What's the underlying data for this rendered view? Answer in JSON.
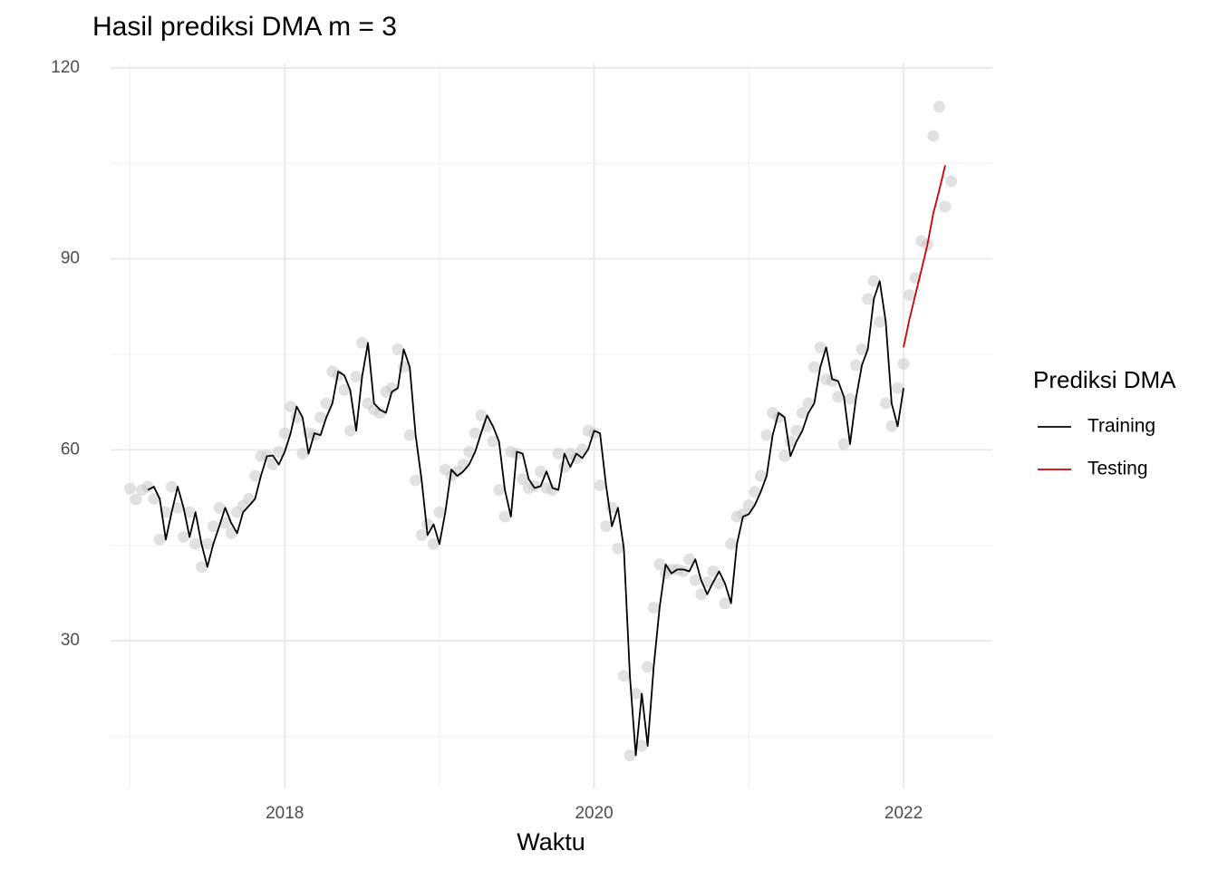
{
  "chart_data": {
    "type": "line",
    "title": "Hasil prediksi DMA m = 3",
    "x_label": "Waktu",
    "legend_title": "Prediksi DMA",
    "legend_position": "right",
    "grid": true,
    "xlim": [
      2016.874,
      2022.574
    ],
    "ylim": [
      6.8,
      120.7
    ],
    "xticks": [
      2018,
      2020,
      2022
    ],
    "yticks": [
      30,
      60,
      90,
      120
    ],
    "xminor": [
      2017,
      2019,
      2021
    ],
    "yminor": [
      15,
      45,
      75,
      105
    ],
    "x": [
      2017.0,
      2017.038,
      2017.077,
      2017.115,
      2017.154,
      2017.192,
      2017.231,
      2017.269,
      2017.308,
      2017.346,
      2017.385,
      2017.423,
      2017.462,
      2017.5,
      2017.538,
      2017.577,
      2017.615,
      2017.654,
      2017.692,
      2017.731,
      2017.769,
      2017.808,
      2017.846,
      2017.885,
      2017.923,
      2017.962,
      2018.0,
      2018.038,
      2018.077,
      2018.115,
      2018.154,
      2018.192,
      2018.231,
      2018.269,
      2018.308,
      2018.346,
      2018.385,
      2018.423,
      2018.462,
      2018.5,
      2018.538,
      2018.577,
      2018.615,
      2018.654,
      2018.692,
      2018.731,
      2018.769,
      2018.808,
      2018.846,
      2018.885,
      2018.923,
      2018.962,
      2019.0,
      2019.038,
      2019.077,
      2019.115,
      2019.154,
      2019.192,
      2019.231,
      2019.269,
      2019.308,
      2019.346,
      2019.385,
      2019.423,
      2019.462,
      2019.5,
      2019.538,
      2019.577,
      2019.615,
      2019.654,
      2019.692,
      2019.731,
      2019.769,
      2019.808,
      2019.846,
      2019.885,
      2019.923,
      2019.962,
      2020.0,
      2020.038,
      2020.077,
      2020.115,
      2020.154,
      2020.192,
      2020.231,
      2020.269,
      2020.308,
      2020.346,
      2020.385,
      2020.423,
      2020.462,
      2020.5,
      2020.538,
      2020.577,
      2020.615,
      2020.654,
      2020.692,
      2020.731,
      2020.769,
      2020.808,
      2020.846,
      2020.885,
      2020.923,
      2020.962,
      2021.0,
      2021.038,
      2021.077,
      2021.115,
      2021.154,
      2021.192,
      2021.231,
      2021.269,
      2021.308,
      2021.346,
      2021.385,
      2021.423,
      2021.462,
      2021.5,
      2021.538,
      2021.577,
      2021.615,
      2021.654,
      2021.692,
      2021.731,
      2021.769,
      2021.808,
      2021.846,
      2021.885,
      2021.923,
      2021.962,
      2022.0,
      2022.038,
      2022.077,
      2022.115,
      2022.154,
      2022.192,
      2022.231,
      2022.269,
      2022.308
    ],
    "series": [
      {
        "name": "Training",
        "color": "#000000",
        "values": [
          null,
          null,
          null,
          53.7,
          54.2,
          52.3,
          45.9,
          50.2,
          54.2,
          50.9,
          46.3,
          50.2,
          45.2,
          41.6,
          45.2,
          48.0,
          50.9,
          48.5,
          46.9,
          50.2,
          51.2,
          52.3,
          55.9,
          59.0,
          59.1,
          57.7,
          59.7,
          62.6,
          66.8,
          65.1,
          59.4,
          62.6,
          62.3,
          65.1,
          67.3,
          72.3,
          71.7,
          69.4,
          63.0,
          71.5,
          76.8,
          67.3,
          66.3,
          65.8,
          69.1,
          69.7,
          75.8,
          73.0,
          62.3,
          55.2,
          46.6,
          48.3,
          45.2,
          50.2,
          56.9,
          55.9,
          56.6,
          57.7,
          59.7,
          62.6,
          65.4,
          63.7,
          61.3,
          53.7,
          49.5,
          59.7,
          59.4,
          55.4,
          54.0,
          54.3,
          56.6,
          54.0,
          53.7,
          59.4,
          57.3,
          59.4,
          58.7,
          60.1,
          63.0,
          62.6,
          54.4,
          48.0,
          50.9,
          44.5,
          24.5,
          12.0,
          21.7,
          13.5,
          25.9,
          35.2,
          42.0,
          40.6,
          41.2,
          41.2,
          40.9,
          42.8,
          39.5,
          37.3,
          39.2,
          40.9,
          39.0,
          35.9,
          45.2,
          49.5,
          49.9,
          51.3,
          53.4,
          55.9,
          62.3,
          65.8,
          65.1,
          59.0,
          61.3,
          63.0,
          65.8,
          67.3,
          73.0,
          76.1,
          71.1,
          70.8,
          68.3,
          60.9,
          68.0,
          73.3,
          75.8,
          83.7,
          86.5,
          80.1,
          67.3,
          63.7,
          69.7,
          null,
          null,
          null,
          null,
          null,
          null,
          null,
          null
        ]
      },
      {
        "name": "Testing",
        "color": "#cc0000",
        "values": [
          null,
          null,
          null,
          null,
          null,
          null,
          null,
          null,
          null,
          null,
          null,
          null,
          null,
          null,
          null,
          null,
          null,
          null,
          null,
          null,
          null,
          null,
          null,
          null,
          null,
          null,
          null,
          null,
          null,
          null,
          null,
          null,
          null,
          null,
          null,
          null,
          null,
          null,
          null,
          null,
          null,
          null,
          null,
          null,
          null,
          null,
          null,
          null,
          null,
          null,
          null,
          null,
          null,
          null,
          null,
          null,
          null,
          null,
          null,
          null,
          null,
          null,
          null,
          null,
          null,
          null,
          null,
          null,
          null,
          null,
          null,
          null,
          null,
          null,
          null,
          null,
          null,
          null,
          null,
          null,
          null,
          null,
          null,
          null,
          null,
          null,
          null,
          null,
          null,
          null,
          null,
          null,
          null,
          null,
          null,
          null,
          null,
          null,
          null,
          null,
          null,
          null,
          null,
          null,
          null,
          null,
          null,
          null,
          null,
          null,
          null,
          null,
          null,
          null,
          null,
          null,
          null,
          null,
          null,
          null,
          null,
          null,
          null,
          null,
          null,
          null,
          null,
          null,
          null,
          null,
          76.1,
          80.5,
          84.4,
          88.2,
          92.2,
          97.1,
          100.8,
          104.7,
          null
        ]
      }
    ],
    "points": {
      "color": "#c8c8c8",
      "values": [
        53.9,
        52.2,
        53.7,
        54.2,
        52.3,
        45.9,
        50.2,
        54.2,
        50.9,
        46.3,
        50.2,
        45.2,
        41.6,
        45.2,
        48.0,
        50.9,
        48.5,
        46.9,
        50.2,
        51.2,
        52.3,
        55.9,
        59.0,
        59.1,
        57.7,
        59.7,
        62.6,
        66.8,
        65.1,
        59.4,
        62.6,
        62.3,
        65.1,
        67.3,
        72.3,
        71.7,
        69.4,
        63.0,
        71.5,
        76.8,
        67.3,
        66.3,
        65.8,
        69.1,
        69.7,
        75.8,
        73.0,
        62.3,
        55.2,
        46.6,
        48.3,
        45.2,
        50.2,
        56.9,
        55.9,
        56.6,
        57.7,
        59.7,
        62.6,
        65.4,
        63.7,
        61.3,
        53.7,
        49.5,
        59.7,
        59.4,
        55.4,
        54.0,
        54.3,
        56.6,
        54.0,
        53.7,
        59.4,
        57.3,
        59.4,
        58.7,
        60.1,
        63.0,
        62.6,
        54.4,
        48.0,
        50.9,
        44.5,
        24.5,
        12.0,
        21.7,
        13.5,
        25.9,
        35.2,
        42.0,
        40.6,
        41.2,
        41.2,
        40.9,
        42.8,
        39.5,
        37.3,
        39.2,
        40.9,
        39.0,
        35.9,
        45.2,
        49.5,
        49.9,
        51.3,
        53.4,
        55.9,
        62.3,
        65.8,
        65.1,
        59.0,
        61.3,
        63.0,
        65.8,
        67.3,
        73.0,
        76.1,
        71.1,
        70.8,
        68.3,
        60.9,
        68.0,
        73.3,
        75.8,
        83.7,
        86.5,
        80.1,
        67.3,
        63.7,
        69.7,
        73.5,
        84.3,
        87.0,
        92.8,
        92.2,
        109.3,
        113.9,
        98.2,
        102.2
      ]
    }
  }
}
